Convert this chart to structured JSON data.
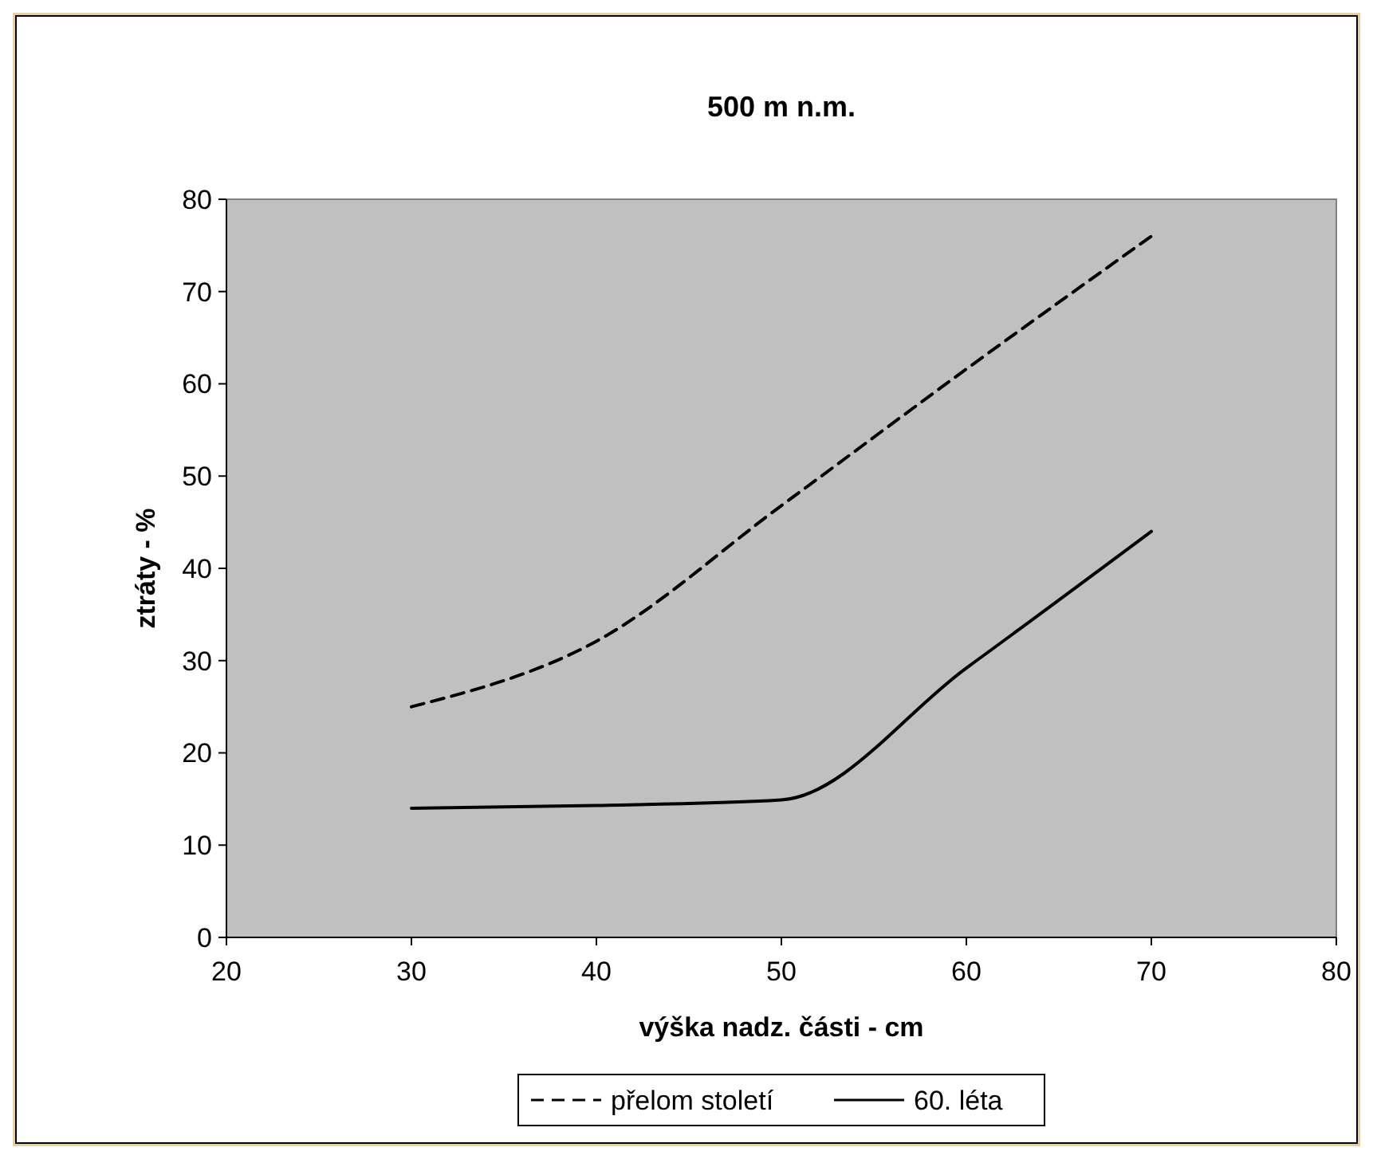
{
  "chart_data": {
    "type": "line",
    "title": "500 m n.m.",
    "xlabel": "výška nadz. části - cm",
    "ylabel": "ztráty - %",
    "x": [
      30,
      40,
      50,
      60,
      70
    ],
    "series": [
      {
        "name": "přelom století",
        "color": "#000000",
        "values": [
          25,
          32.1,
          46.8,
          61.6,
          76
        ],
        "line_style": "dashed"
      },
      {
        "name": "60. léta",
        "color": "#000000",
        "values": [
          14,
          14.3,
          14.9,
          29.2,
          44
        ],
        "line_style": "solid"
      }
    ],
    "xlim": [
      20,
      80
    ],
    "xticks": [
      20,
      30,
      40,
      50,
      60,
      70,
      80
    ],
    "ylim": [
      0,
      80
    ],
    "yticks": [
      0,
      10,
      20,
      30,
      40,
      50,
      60,
      70,
      80
    ],
    "grid": false,
    "legend": "bottom",
    "marker": "none"
  }
}
